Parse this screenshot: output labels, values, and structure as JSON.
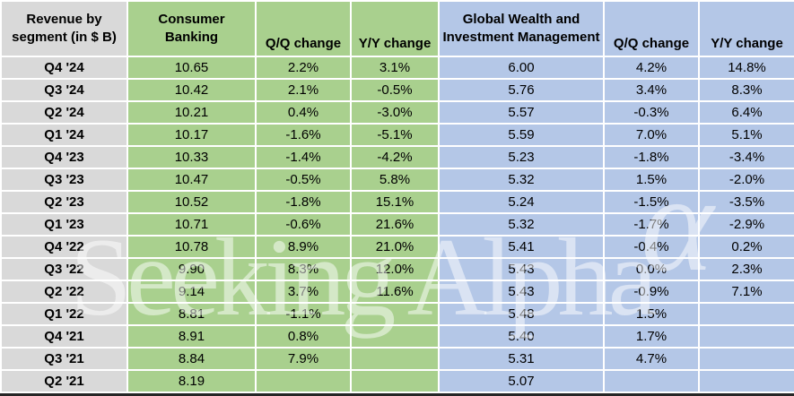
{
  "title_cell": "Revenue by segment (in $ B)",
  "groups": {
    "consumer_banking": {
      "label": "Consumer Banking",
      "qq": "Q/Q change",
      "yy": "Y/Y change"
    },
    "gwim": {
      "label": "Global Wealth and Investment Management",
      "qq": "Q/Q change",
      "yy": "Y/Y change"
    }
  },
  "rows": [
    {
      "quarter": "Q4 '24",
      "cb": "10.65",
      "cb_qq": "2.2%",
      "cb_yy": "3.1%",
      "gwim": "6.00",
      "gwim_qq": "4.2%",
      "gwim_yy": "14.8%"
    },
    {
      "quarter": "Q3 '24",
      "cb": "10.42",
      "cb_qq": "2.1%",
      "cb_yy": "-0.5%",
      "gwim": "5.76",
      "gwim_qq": "3.4%",
      "gwim_yy": "8.3%"
    },
    {
      "quarter": "Q2 '24",
      "cb": "10.21",
      "cb_qq": "0.4%",
      "cb_yy": "-3.0%",
      "gwim": "5.57",
      "gwim_qq": "-0.3%",
      "gwim_yy": "6.4%"
    },
    {
      "quarter": "Q1 '24",
      "cb": "10.17",
      "cb_qq": "-1.6%",
      "cb_yy": "-5.1%",
      "gwim": "5.59",
      "gwim_qq": "7.0%",
      "gwim_yy": "5.1%"
    },
    {
      "quarter": "Q4 '23",
      "cb": "10.33",
      "cb_qq": "-1.4%",
      "cb_yy": "-4.2%",
      "gwim": "5.23",
      "gwim_qq": "-1.8%",
      "gwim_yy": "-3.4%"
    },
    {
      "quarter": "Q3 '23",
      "cb": "10.47",
      "cb_qq": "-0.5%",
      "cb_yy": "5.8%",
      "gwim": "5.32",
      "gwim_qq": "1.5%",
      "gwim_yy": "-2.0%"
    },
    {
      "quarter": "Q2 '23",
      "cb": "10.52",
      "cb_qq": "-1.8%",
      "cb_yy": "15.1%",
      "gwim": "5.24",
      "gwim_qq": "-1.5%",
      "gwim_yy": "-3.5%"
    },
    {
      "quarter": "Q1 '23",
      "cb": "10.71",
      "cb_qq": "-0.6%",
      "cb_yy": "21.6%",
      "gwim": "5.32",
      "gwim_qq": "-1.7%",
      "gwim_yy": "-2.9%"
    },
    {
      "quarter": "Q4 '22",
      "cb": "10.78",
      "cb_qq": "8.9%",
      "cb_yy": "21.0%",
      "gwim": "5.41",
      "gwim_qq": "-0.4%",
      "gwim_yy": "0.2%"
    },
    {
      "quarter": "Q3 '22",
      "cb": "9.90",
      "cb_qq": "8.3%",
      "cb_yy": "12.0%",
      "gwim": "5.43",
      "gwim_qq": "0.0%",
      "gwim_yy": "2.3%"
    },
    {
      "quarter": "Q2 '22",
      "cb": "9.14",
      "cb_qq": "3.7%",
      "cb_yy": "11.6%",
      "gwim": "5.43",
      "gwim_qq": "-0.9%",
      "gwim_yy": "7.1%"
    },
    {
      "quarter": "Q1 '22",
      "cb": "8.81",
      "cb_qq": "-1.1%",
      "cb_yy": "",
      "gwim": "5.48",
      "gwim_qq": "1.5%",
      "gwim_yy": ""
    },
    {
      "quarter": "Q4 '21",
      "cb": "8.91",
      "cb_qq": "0.8%",
      "cb_yy": "",
      "gwim": "5.40",
      "gwim_qq": "1.7%",
      "gwim_yy": ""
    },
    {
      "quarter": "Q3 '21",
      "cb": "8.84",
      "cb_qq": "7.9%",
      "cb_yy": "",
      "gwim": "5.31",
      "gwim_qq": "4.7%",
      "gwim_yy": ""
    },
    {
      "quarter": "Q2 '21",
      "cb": "8.19",
      "cb_qq": "",
      "cb_yy": "",
      "gwim": "5.07",
      "gwim_qq": "",
      "gwim_yy": ""
    }
  ],
  "watermark": {
    "text": "Seeking Alpha",
    "alpha": "α"
  },
  "colors": {
    "green": "#A9D08E",
    "blue": "#B4C7E7",
    "gray": "#D9D9D9",
    "grid": "#FFFFFF",
    "bottom_bar": "#262626",
    "text": "#000000"
  },
  "chart_data": {
    "type": "table",
    "title": "Revenue by segment (in $ B)",
    "categories": [
      "Q4 '24",
      "Q3 '24",
      "Q2 '24",
      "Q1 '24",
      "Q4 '23",
      "Q3 '23",
      "Q2 '23",
      "Q1 '23",
      "Q4 '22",
      "Q3 '22",
      "Q2 '22",
      "Q1 '22",
      "Q4 '21",
      "Q3 '21",
      "Q2 '21"
    ],
    "series": [
      {
        "name": "Consumer Banking",
        "values": [
          10.65,
          10.42,
          10.21,
          10.17,
          10.33,
          10.47,
          10.52,
          10.71,
          10.78,
          9.9,
          9.14,
          8.81,
          8.91,
          8.84,
          8.19
        ]
      },
      {
        "name": "Consumer Banking Q/Q change %",
        "values": [
          2.2,
          2.1,
          0.4,
          -1.6,
          -1.4,
          -0.5,
          -1.8,
          -0.6,
          8.9,
          8.3,
          3.7,
          -1.1,
          0.8,
          7.9,
          null
        ]
      },
      {
        "name": "Consumer Banking Y/Y change %",
        "values": [
          3.1,
          -0.5,
          -3.0,
          -5.1,
          -4.2,
          5.8,
          15.1,
          21.6,
          21.0,
          12.0,
          11.6,
          null,
          null,
          null,
          null
        ]
      },
      {
        "name": "Global Wealth and Investment Management",
        "values": [
          6.0,
          5.76,
          5.57,
          5.59,
          5.23,
          5.32,
          5.24,
          5.32,
          5.41,
          5.43,
          5.43,
          5.48,
          5.4,
          5.31,
          5.07
        ]
      },
      {
        "name": "GWIM Q/Q change %",
        "values": [
          4.2,
          3.4,
          -0.3,
          7.0,
          -1.8,
          1.5,
          -1.5,
          -1.7,
          -0.4,
          0.0,
          -0.9,
          1.5,
          1.7,
          4.7,
          null
        ]
      },
      {
        "name": "GWIM Y/Y change %",
        "values": [
          14.8,
          8.3,
          6.4,
          5.1,
          -3.4,
          -2.0,
          -3.5,
          -2.9,
          0.2,
          2.3,
          7.1,
          null,
          null,
          null,
          null
        ]
      }
    ]
  }
}
